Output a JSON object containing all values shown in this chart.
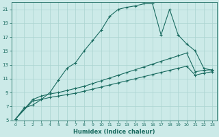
{
  "xlabel": "Humidex (Indice chaleur)",
  "bg_color": "#cceae8",
  "grid_color": "#aad4d0",
  "line_color": "#1a6b60",
  "xlim": [
    -0.5,
    23.5
  ],
  "ylim": [
    5,
    22
  ],
  "xticks": [
    0,
    1,
    2,
    3,
    4,
    5,
    6,
    7,
    8,
    9,
    10,
    11,
    12,
    13,
    14,
    15,
    16,
    17,
    18,
    19,
    20,
    21,
    22,
    23
  ],
  "yticks": [
    5,
    7,
    9,
    11,
    13,
    15,
    17,
    19,
    21
  ],
  "line1_x": [
    0,
    1,
    2,
    3,
    4,
    5,
    6,
    7,
    8,
    9,
    10,
    11,
    12,
    13,
    14,
    15,
    16,
    17,
    18,
    19,
    20,
    21,
    22,
    23
  ],
  "line1_y": [
    5.2,
    6.8,
    7.2,
    8.0,
    9.0,
    10.8,
    12.5,
    13.3,
    15.0,
    16.5,
    18.0,
    20.0,
    21.0,
    21.3,
    21.5,
    21.8,
    21.8,
    17.3,
    21.0,
    17.3,
    16.0,
    15.0,
    12.5,
    12.2
  ],
  "line2_x": [
    0,
    2,
    3,
    4,
    5,
    6,
    7,
    8,
    9,
    10,
    11,
    12,
    13,
    14,
    15,
    16,
    17,
    18,
    19,
    20,
    21,
    22,
    23
  ],
  "line2_y": [
    5.2,
    8.0,
    8.5,
    8.8,
    9.0,
    9.3,
    9.6,
    9.9,
    10.3,
    10.7,
    11.1,
    11.5,
    11.9,
    12.3,
    12.7,
    13.1,
    13.5,
    13.9,
    14.3,
    14.7,
    12.0,
    12.2,
    12.3
  ],
  "line3_x": [
    0,
    2,
    3,
    4,
    5,
    6,
    7,
    8,
    9,
    10,
    11,
    12,
    13,
    14,
    15,
    16,
    17,
    18,
    19,
    20,
    21,
    22,
    23
  ],
  "line3_y": [
    5.2,
    7.8,
    8.0,
    8.3,
    8.5,
    8.7,
    8.9,
    9.2,
    9.5,
    9.8,
    10.1,
    10.4,
    10.7,
    11.0,
    11.3,
    11.6,
    11.9,
    12.2,
    12.5,
    12.8,
    11.5,
    11.8,
    12.0
  ]
}
